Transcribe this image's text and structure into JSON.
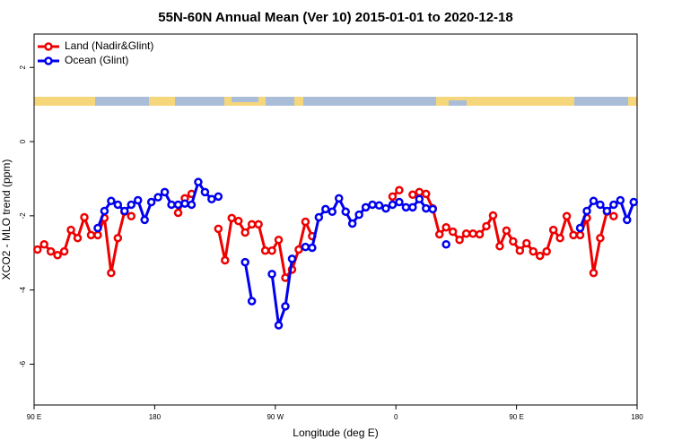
{
  "chart_data": {
    "type": "line",
    "title": "55N-60N Annual Mean (Ver 10)   2015-01-01 to 2020-12-18",
    "x_label": "Longitude (deg E)",
    "y_label": "XCO2 - MLO trend (ppm)",
    "legend": "top-left",
    "x": [
      92.5,
      97.5,
      102.5,
      107.5,
      112.5,
      117.5,
      122.5,
      127.5,
      132.5,
      137.5,
      142.5,
      147.5,
      152.5,
      157.5,
      162.5,
      167.5,
      172.5,
      177.5,
      182.5,
      187.5,
      192.5,
      197.5,
      202.5,
      207.5,
      212.5,
      217.5,
      222.5,
      227.5,
      232.5,
      237.5,
      242.5,
      247.5,
      252.5,
      257.5,
      262.5,
      267.5,
      272.5,
      277.5,
      282.5,
      287.5,
      292.5,
      297.5,
      302.5,
      307.5,
      312.5,
      317.5,
      322.5,
      327.5,
      332.5,
      337.5,
      342.5,
      347.5,
      352.5,
      357.5,
      362.5,
      367.5,
      372.5,
      377.5,
      382.5,
      387.5,
      392.5,
      397.5,
      402.5,
      407.5,
      412.5,
      417.5,
      422.5,
      427.5,
      432.5,
      437.5,
      442.5,
      447.5,
      452.5,
      457.5,
      462.5,
      467.5,
      472.5,
      477.5,
      482.5,
      487.5,
      492.5,
      497.5,
      502.5,
      507.5,
      512.5,
      517.5,
      522.5,
      527.5,
      532.5,
      537.5
    ],
    "series": [
      {
        "name": "Land (Nadir&Glint)",
        "color": "#ee0000",
        "values": [
          -2.91,
          -2.77,
          -2.96,
          -3.06,
          -2.96,
          -2.38,
          -2.6,
          -2.04,
          -2.52,
          -2.52,
          -2.06,
          -3.54,
          -2.6,
          -1.89,
          -2.01,
          null,
          null,
          null,
          null,
          null,
          null,
          -1.92,
          -1.53,
          -1.41,
          null,
          null,
          null,
          -2.35,
          -3.2,
          -2.06,
          -2.14,
          -2.45,
          -2.23,
          -2.23,
          -2.94,
          -2.94,
          -2.65,
          -3.67,
          -3.45,
          -2.91,
          -2.16,
          -2.55,
          null,
          null,
          null,
          null,
          null,
          null,
          null,
          null,
          null,
          null,
          null,
          -1.48,
          -1.31,
          null,
          -1.43,
          -1.36,
          -1.41,
          -1.8,
          -2.5,
          -2.31,
          -2.43,
          -2.65,
          -2.48,
          -2.48,
          -2.5,
          -2.28,
          -1.99,
          -2.82,
          -2.4,
          -2.69,
          -2.94,
          -2.74,
          -2.96,
          -3.08,
          -2.96,
          -2.38,
          -2.6,
          -2.01,
          -2.52,
          -2.52,
          -2.06,
          -3.54,
          -2.6,
          -1.89,
          -2.01,
          null,
          null,
          null
        ]
      },
      {
        "name": "Ocean (Glint)",
        "color": "#0000ee",
        "values": [
          null,
          null,
          null,
          null,
          null,
          null,
          null,
          null,
          null,
          -2.33,
          -1.87,
          -1.6,
          -1.7,
          -1.87,
          -1.7,
          -1.58,
          -2.11,
          -1.63,
          -1.5,
          -1.36,
          -1.7,
          -1.7,
          -1.67,
          -1.7,
          -1.09,
          -1.36,
          -1.55,
          -1.48,
          null,
          null,
          null,
          -3.25,
          -4.3,
          null,
          null,
          -3.57,
          -4.95,
          -4.44,
          -3.16,
          null,
          -2.84,
          -2.86,
          -2.04,
          -1.82,
          -1.89,
          -1.53,
          -1.89,
          -2.21,
          -1.97,
          -1.77,
          -1.7,
          -1.72,
          -1.8,
          -1.7,
          -1.63,
          -1.77,
          -1.77,
          -1.55,
          -1.8,
          -1.82,
          null,
          -2.77,
          null,
          null,
          null,
          null,
          null,
          null,
          null,
          null,
          null,
          null,
          null,
          null,
          null,
          null,
          null,
          null,
          null,
          null,
          null,
          -2.33,
          -1.87,
          -1.6,
          -1.7,
          -1.87,
          -1.7,
          -1.58,
          -2.11,
          -1.63
        ]
      }
    ],
    "xlim": [
      90,
      540
    ],
    "xticks": [
      {
        "value": 90,
        "label": "90 E"
      },
      180,
      {
        "value": 270,
        "label": "90 W"
      },
      {
        "value": 360,
        "label": "0"
      },
      {
        "value": 450,
        "label": "90 E"
      },
      {
        "value": 540,
        "label": "180"
      }
    ],
    "ylim": [
      -7.1,
      2.9
    ],
    "yticks": [
      -6,
      -4,
      -2,
      0,
      2
    ]
  }
}
